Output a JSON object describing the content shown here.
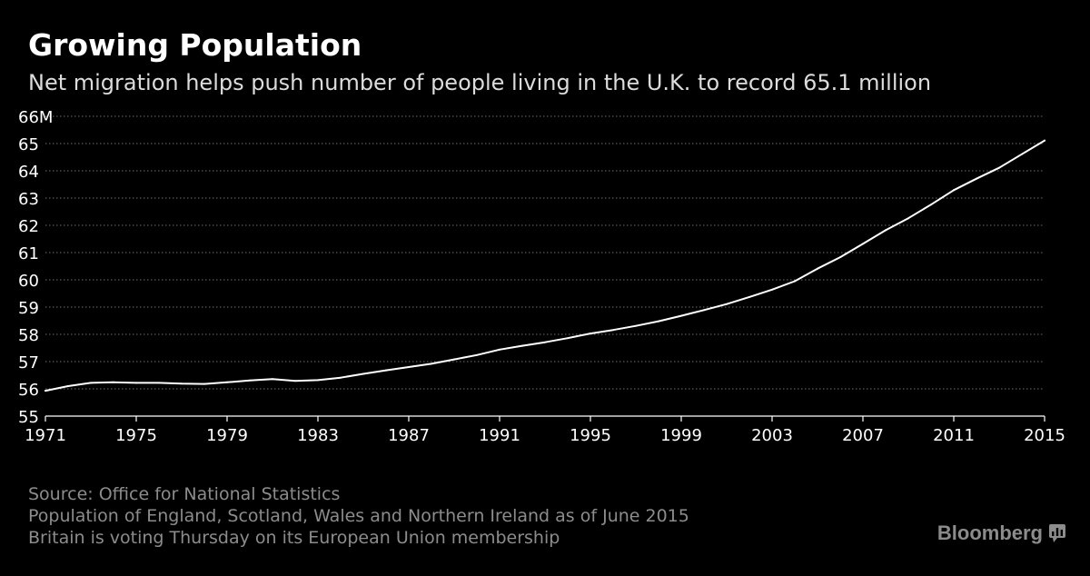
{
  "header": {
    "title": "Growing Population",
    "subtitle": "Net migration helps push number of people living in the U.K. to record 65.1 million"
  },
  "chart_data": {
    "type": "line",
    "title": "Growing Population",
    "subtitle": "Net migration helps push number of people living in the U.K. to record 65.1 million",
    "xlabel": "",
    "ylabel": "",
    "xlim": [
      1971,
      2015
    ],
    "ylim": [
      55,
      66
    ],
    "x_ticks": [
      1971,
      1975,
      1979,
      1983,
      1987,
      1991,
      1995,
      1999,
      2003,
      2007,
      2011,
      2015
    ],
    "x_tick_labels": [
      "1971",
      "1975",
      "1979",
      "1983",
      "1987",
      "1991",
      "1995",
      "1999",
      "2003",
      "2007",
      "2011",
      "2015"
    ],
    "y_ticks": [
      55,
      56,
      57,
      58,
      59,
      60,
      61,
      62,
      63,
      64,
      65,
      66
    ],
    "y_tick_labels": [
      "55",
      "56",
      "57",
      "58",
      "59",
      "60",
      "61",
      "62",
      "63",
      "64",
      "65",
      "66M"
    ],
    "grid": "horizontal dotted",
    "legend": "none",
    "series": [
      {
        "x": [
          1971,
          1972,
          1973,
          1974,
          1975,
          1976,
          1977,
          1978,
          1979,
          1980,
          1981,
          1982,
          1983,
          1984,
          1985,
          1986,
          1987,
          1988,
          1989,
          1990,
          1991,
          1992,
          1993,
          1994,
          1995,
          1996,
          1997,
          1998,
          1999,
          2000,
          2001,
          2002,
          2003,
          2004,
          2005,
          2006,
          2007,
          2008,
          2009,
          2010,
          2011,
          2012,
          2013,
          2014,
          2015
        ],
        "values": [
          55.93,
          56.1,
          56.22,
          56.24,
          56.22,
          56.22,
          56.19,
          56.18,
          56.24,
          56.31,
          56.36,
          56.29,
          56.32,
          56.41,
          56.55,
          56.68,
          56.8,
          56.92,
          57.08,
          57.24,
          57.44,
          57.58,
          57.71,
          57.86,
          58.03,
          58.16,
          58.31,
          58.48,
          58.68,
          58.89,
          59.11,
          59.37,
          59.64,
          59.95,
          60.41,
          60.83,
          61.32,
          61.82,
          62.26,
          62.76,
          63.29,
          63.71,
          64.11,
          64.61,
          65.11
        ],
        "color": "#ffffff"
      }
    ]
  },
  "footnotes": {
    "source": "Source: Office for National Statistics",
    "note1": "Population of England, Scotland, Wales and Northern Ireland as of June 2015",
    "note2": "Britain is voting Thursday on its European Union membership"
  },
  "brand": {
    "name": "Bloomberg",
    "icon": "bloomberg-mark-icon"
  },
  "colors": {
    "background": "#000000",
    "line": "#ffffff",
    "grid": "#6e6e6e",
    "axis": "#ffffff",
    "muted_text": "#8c8c8c"
  }
}
